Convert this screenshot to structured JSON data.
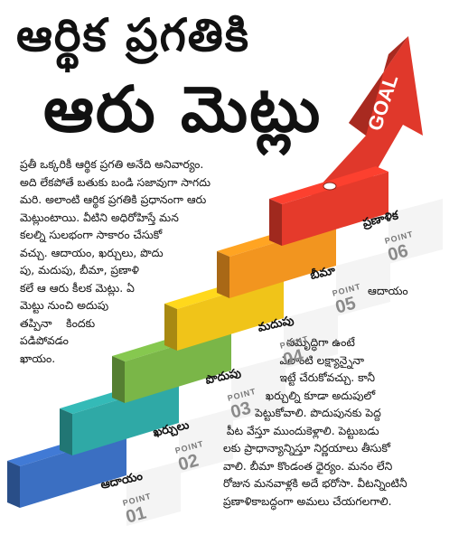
{
  "title_line1": "ఆర్థిక ప్రగతికి",
  "title_line2": "ఆరు మెట్లు",
  "goal_label": "GOAL",
  "point_word": "POINT",
  "steps": [
    {
      "label": "ఆదాయం",
      "num": "01",
      "color": "#3b6fc2"
    },
    {
      "label": "ఖర్చులు",
      "num": "02",
      "color": "#2fa9a6"
    },
    {
      "label": "పొదుపు",
      "num": "03",
      "color": "#7ab648"
    },
    {
      "label": "మదుపు",
      "num": "04",
      "color": "#f0c419"
    },
    {
      "label": "బీమా",
      "num": "05",
      "color": "#f2951f"
    },
    {
      "label": "ప్రణాళిక",
      "num": "06",
      "color": "#e53a2b"
    }
  ],
  "colors": {
    "arrow": "#e0382b",
    "step_face": "#ffffff"
  },
  "left_paragraph": "ప్రతీ ఒక్కరికీ ఆర్థిక ప్రగతి అనేది అనివార్యం.\nఅది లేకపోతే బతుకు బండి సజావుగా సాగదు\nమరి. అలాంటి ఆర్థిక ప్రగతికి ప్రధానంగా ఆరు\nమెట్లుంటాయి. వీటిని అధిరోహిస్తే మన\nకలల్ని సులభంగా సాకారం చేసుకో\nవచ్చు. ఆదాయం, ఖర్చులు, పొదు\nపు, మదుపు, బీమా, ప్రణాళి\nకలే ఆ ఆరు కీలక మెట్లు. ఏ\nమెట్టు నుంచి అదుపు\nతప్పినా    కిందకు\nపడిపోవడం\nఖాయం.",
  "right_heading": "ఆదాయం",
  "right_paragraph": "                సమృద్ధిగా ఉంటే\n                ఎలాంటి లక్ష్యాన్నైనా\n                ఇట్టే చేరుకోవచ్చు. కానీ\n            ఖర్చుల్ని కూడా అదుపులో\n         పెట్టుకోవాలి. పొదుపునకు పెద్ద\n పీట వేస్తూ ముందుకెళ్లాలి. పెట్టుబడు\nలకు ప్రాధాన్యాన్నిస్తూ నిర్ణయాలు తీసుకో\nవాలి. బీమా కొండంత ధైర్యం. మనం లేని\nరోజున మనవాళ్లకి అదే భరోసా. వీటన్నింటినీ\nప్రణాళికాబద్ధంగా అమలు చేయగలగాలి."
}
